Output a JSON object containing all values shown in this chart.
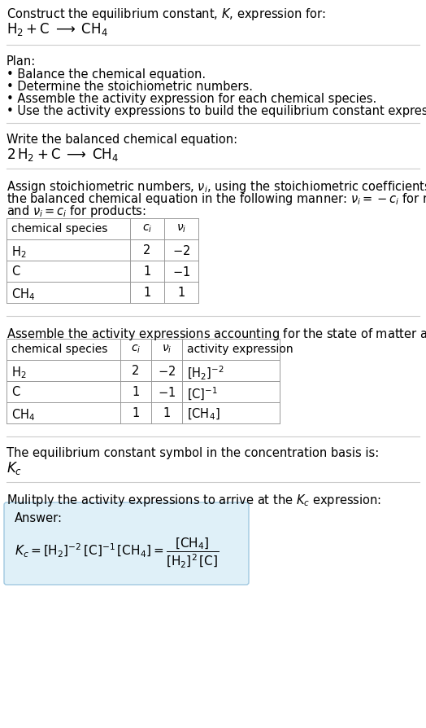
{
  "title_line1": "Construct the equilibrium constant, $K$, expression for:",
  "title_line2": "$\\mathrm{H_2 + C \\;\\longrightarrow\\; CH_4}$",
  "plan_header": "Plan:",
  "plan_bullets": [
    "Balance the chemical equation.",
    "Determine the stoichiometric numbers.",
    "Assemble the activity expression for each chemical species.",
    "Use the activity expressions to build the equilibrium constant expression."
  ],
  "balanced_eq_header": "Write the balanced chemical equation:",
  "balanced_eq": "$\\mathrm{2\\,H_2 + C \\;\\longrightarrow\\; CH_4}$",
  "stoich_lines": [
    "Assign stoichiometric numbers, $\\nu_i$, using the stoichiometric coefficients, $c_i$, from",
    "the balanced chemical equation in the following manner: $\\nu_i = -c_i$ for reactants",
    "and $\\nu_i = c_i$ for products:"
  ],
  "table1_headers": [
    "chemical species",
    "$c_i$",
    "$\\nu_i$"
  ],
  "table1_rows": [
    [
      "$\\mathrm{H_2}$",
      "2",
      "$-2$"
    ],
    [
      "C",
      "1",
      "$-1$"
    ],
    [
      "$\\mathrm{CH_4}$",
      "1",
      "1"
    ]
  ],
  "activity_intro": "Assemble the activity expressions accounting for the state of matter and $\\nu_i$:",
  "table2_headers": [
    "chemical species",
    "$c_i$",
    "$\\nu_i$",
    "activity expression"
  ],
  "table2_rows": [
    [
      "$\\mathrm{H_2}$",
      "2",
      "$-2$",
      "$[\\mathrm{H_2}]^{-2}$"
    ],
    [
      "C",
      "1",
      "$-1$",
      "$[\\mathrm{C}]^{-1}$"
    ],
    [
      "$\\mathrm{CH_4}$",
      "1",
      "1",
      "$[\\mathrm{CH_4}]$"
    ]
  ],
  "kc_text": "The equilibrium constant symbol in the concentration basis is:",
  "kc_symbol": "$K_c$",
  "multiply_text": "Mulitply the activity expressions to arrive at the $K_c$ expression:",
  "answer_label": "Answer:",
  "answer_eq": "$K_c = [\\mathrm{H_2}]^{-2}\\,[\\mathrm{C}]^{-1}\\,[\\mathrm{CH_4}] = \\dfrac{[\\mathrm{CH_4}]}{[\\mathrm{H_2}]^2\\,[\\mathrm{C}]}$",
  "answer_box_color": "#dff0f8",
  "answer_box_border": "#a0c8e0",
  "bg_color": "#ffffff",
  "text_color": "#000000",
  "table_line_color": "#999999",
  "sep_line_color": "#cccccc"
}
